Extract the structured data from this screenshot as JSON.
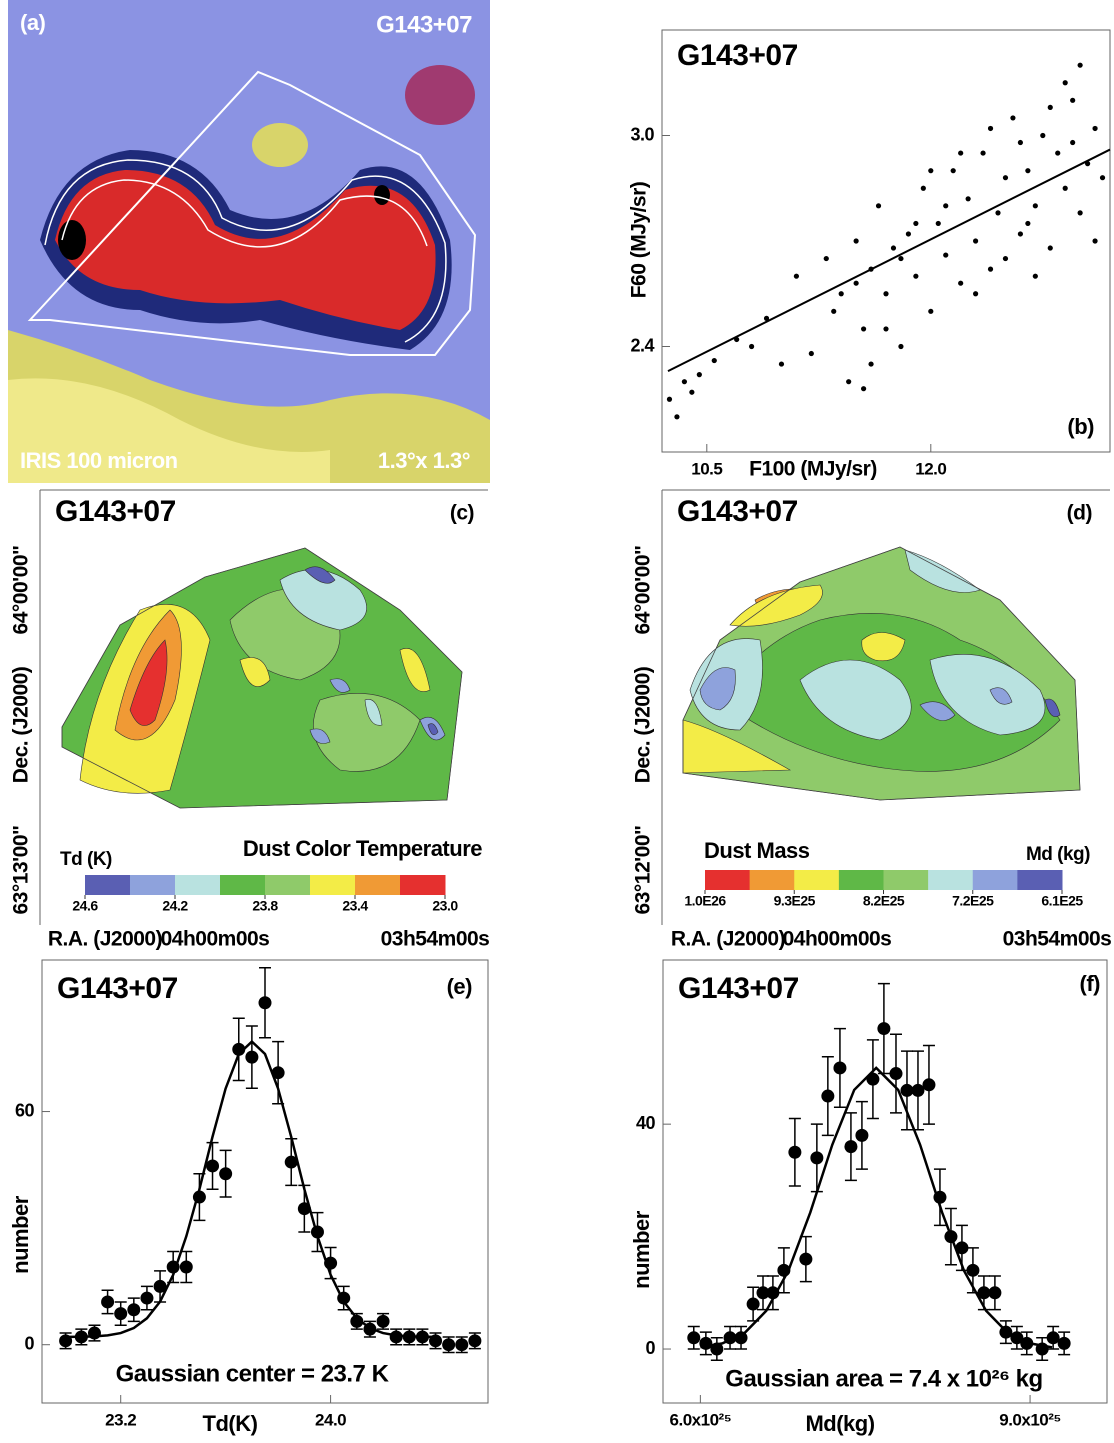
{
  "chart_data": [
    {
      "type": "image",
      "label": "(a)",
      "title": "G143+07",
      "caption": "IRIS 100 micron",
      "scale": "1.3°x 1.3°"
    },
    {
      "type": "scatter",
      "title": "G143+07",
      "label": "(b)",
      "x_label": "F100 (MJy/sr)",
      "y_label": "F60 (MJy/sr)",
      "xlim": [
        10.2,
        13.2
      ],
      "ylim": [
        2.1,
        3.3
      ],
      "xticks": [
        10.5,
        {
          "value": 12.0,
          "label": "12.0"
        }
      ],
      "yticks": [
        2.4,
        {
          "value": 3.0,
          "label": "3.0"
        }
      ],
      "color": "#000000",
      "x": [
        10.25,
        10.3,
        10.35,
        10.4,
        10.45,
        10.55,
        10.7,
        10.8,
        10.9,
        11.0,
        11.1,
        11.2,
        11.3,
        11.35,
        11.4,
        11.45,
        11.5,
        11.55,
        11.6,
        11.6,
        11.65,
        11.7,
        11.75,
        11.8,
        11.85,
        11.9,
        11.95,
        12.0,
        12.05,
        12.1,
        12.15,
        12.2,
        12.25,
        12.3,
        12.35,
        12.4,
        12.45,
        12.5,
        12.55,
        12.6,
        12.65,
        12.7,
        12.75,
        12.8,
        12.85,
        12.9,
        12.95,
        13.0,
        13.05,
        13.1,
        13.15,
        12.6,
        12.9,
        12.3,
        12.1,
        11.9,
        12.7,
        13.0,
        12.5,
        12.2,
        11.7,
        11.5,
        12.8,
        13.1,
        12.4,
        11.8,
        12.0,
        12.95,
        12.65,
        11.55
      ],
      "y": [
        2.25,
        2.2,
        2.3,
        2.27,
        2.32,
        2.36,
        2.42,
        2.4,
        2.48,
        2.35,
        2.6,
        2.38,
        2.65,
        2.5,
        2.55,
        2.3,
        2.7,
        2.45,
        2.62,
        2.35,
        2.8,
        2.55,
        2.68,
        2.4,
        2.72,
        2.6,
        2.85,
        2.5,
        2.75,
        2.66,
        2.9,
        2.58,
        2.82,
        2.7,
        2.95,
        2.62,
        2.78,
        2.88,
        3.05,
        2.72,
        2.9,
        2.8,
        3.0,
        2.68,
        2.95,
        2.85,
        3.1,
        2.78,
        2.92,
        3.02,
        2.88,
        2.98,
        3.15,
        2.55,
        2.8,
        2.75,
        2.6,
        3.2,
        2.65,
        2.95,
        2.45,
        2.58,
        3.08,
        2.7,
        3.02,
        2.65,
        2.9,
        2.98,
        2.75,
        2.28
      ],
      "fit": {
        "x": [
          10.24,
          13.2
        ],
        "y": [
          2.33,
          2.96
        ]
      }
    },
    {
      "type": "map",
      "title": "G143+07",
      "label": "(c)",
      "y_label": "Dec. (J2000)",
      "x_label": "R.A. (J2000)",
      "dec_ticks": [
        "64°00'00\"",
        "63°13'00\""
      ],
      "ra_ticks": [
        "04h00m00s",
        "03h54m00s"
      ],
      "colorbar_title": "Dust Color Temperature",
      "colorbar_unit": "Td (K)",
      "cticks": [
        24.6,
        24.2,
        23.8,
        23.4,
        {
          "value": 23.0,
          "label": "23.0"
        }
      ],
      "colors": [
        "#5a5fb3",
        "#8ea2dc",
        "#b9e2e0",
        "#5fb847",
        "#8fca6a",
        "#f3ec47",
        "#f09a35",
        "#e5302f"
      ]
    },
    {
      "type": "map",
      "title": "G143+07",
      "label": "(d)",
      "y_label": "Dec. (J2000)",
      "x_label": "R.A. (J2000)",
      "dec_ticks": [
        "64°00'00\"",
        "63°12'00\""
      ],
      "ra_ticks": [
        "04h00m00s",
        "03h54m00s"
      ],
      "colorbar_title": "Dust Mass",
      "colorbar_unit": "Md (kg)",
      "cticks": [
        {
          "value": 1e+26,
          "label": "1.0E26"
        },
        {
          "value": 9.3e+25,
          "label": "9.3E25"
        },
        {
          "value": 8.2e+25,
          "label": "8.2E25"
        },
        {
          "value": 7.2e+25,
          "label": "7.2E25"
        },
        {
          "value": 6.1e+25,
          "label": "6.1E25"
        }
      ],
      "colors": [
        "#e5302f",
        "#f09a35",
        "#f3ec47",
        "#5fb847",
        "#8fca6a",
        "#b9e2e0",
        "#8ea2dc",
        "#5a5fb3"
      ]
    },
    {
      "type": "errorbar",
      "title": "G143+07",
      "label": "(e)",
      "x_label": "Td(K)",
      "y_label": "number",
      "annotation": "Gaussian center = 23.7 K",
      "xlim": [
        22.9,
        24.6
      ],
      "ylim": [
        -15,
        99
      ],
      "xticks": [
        23.2,
        {
          "value": 24.0,
          "label": "24.0"
        }
      ],
      "yticks": [
        0,
        60
      ],
      "color": "#000000",
      "x": [
        22.99,
        23.05,
        23.1,
        23.15,
        23.2,
        23.25,
        23.3,
        23.35,
        23.4,
        23.45,
        23.5,
        23.55,
        23.6,
        23.65,
        23.7,
        23.75,
        23.8,
        23.85,
        23.9,
        23.95,
        24.0,
        24.05,
        24.1,
        24.15,
        24.2,
        24.25,
        24.3,
        24.35,
        24.4,
        24.45,
        24.5,
        24.55
      ],
      "values": [
        1,
        2,
        3,
        11,
        8,
        9,
        12,
        15,
        20,
        20,
        38,
        46,
        44,
        76,
        74,
        88,
        70,
        47,
        35,
        29,
        21,
        12,
        6,
        4,
        6,
        2,
        2,
        2,
        1,
        0,
        0,
        1
      ],
      "errors": [
        2,
        2,
        2,
        3,
        3,
        3,
        3,
        4,
        4,
        4,
        6,
        6,
        6,
        8,
        8,
        9,
        8,
        6,
        6,
        5,
        4,
        3,
        2,
        2,
        2,
        2,
        2,
        2,
        2,
        2,
        2,
        2
      ],
      "fit": {
        "x": [
          23.0,
          23.05,
          23.1,
          23.15,
          23.2,
          23.25,
          23.3,
          23.35,
          23.4,
          23.45,
          23.5,
          23.55,
          23.6,
          23.65,
          23.7,
          23.75,
          23.8,
          23.85,
          23.9,
          23.95,
          24.0,
          24.05,
          24.1,
          24.15,
          24.2,
          24.25,
          24.3,
          24.35,
          24.4
        ],
        "y": [
          2.0,
          2.05,
          2.15,
          2.4,
          3.0,
          4.3,
          6.8,
          11.1,
          18.0,
          27.9,
          40.0,
          53.5,
          65.9,
          74.8,
          78,
          74.8,
          65.9,
          53.5,
          40.0,
          27.9,
          18.0,
          11.1,
          6.8,
          4.3,
          3.0,
          2.4,
          2.15,
          2.05,
          2.0
        ]
      }
    },
    {
      "type": "errorbar",
      "title": "G143+07",
      "label": "(f)",
      "x_label": "Md(kg)",
      "y_label": "number",
      "annotation": "Gaussian area = 7.4 x 10²⁶ kg",
      "xlim": [
        5.66e+25,
        9.7e+25
      ],
      "ylim": [
        -9.6,
        69.2
      ],
      "xticks": [
        {
          "value": 6e+25,
          "label": "6.0x10²⁵"
        },
        {
          "value": 9e+25,
          "label": "9.0x10²⁵"
        }
      ],
      "yticks": [
        0,
        40
      ],
      "color": "#000000",
      "x": [
        5.94e+25,
        6.05e+25,
        6.15e+25,
        6.27e+25,
        6.37e+25,
        6.48e+25,
        6.57e+25,
        6.66e+25,
        6.76e+25,
        6.86e+25,
        6.96e+25,
        7.06e+25,
        7.16e+25,
        7.27e+25,
        7.37e+25,
        7.47e+25,
        7.57e+25,
        7.67e+25,
        7.78e+25,
        7.88e+25,
        7.98e+25,
        8.08e+25,
        8.18e+25,
        8.28e+25,
        8.38e+25,
        8.48e+25,
        8.58e+25,
        8.68e+25,
        8.78e+25,
        8.88e+25,
        8.97e+25,
        9.11e+25,
        9.21e+25,
        9.31e+25
      ],
      "values": [
        2,
        1,
        0,
        2,
        2,
        8,
        10,
        10,
        14,
        35,
        16,
        34,
        45,
        50,
        36,
        38,
        48,
        57,
        49,
        46,
        46,
        47,
        27,
        20,
        18,
        14,
        10,
        10,
        3,
        2,
        1,
        0,
        2,
        1
      ],
      "errors": [
        2,
        2,
        2,
        2,
        2,
        3,
        3,
        3,
        4,
        6,
        4,
        6,
        7,
        7,
        6,
        6,
        7,
        8,
        7,
        7,
        7,
        7,
        5,
        5,
        4,
        4,
        3,
        3,
        2,
        2,
        2,
        2,
        2,
        2
      ],
      "fit": {
        "x": [
          6e+25,
          6.2e+25,
          6.4e+25,
          6.6e+25,
          6.8e+25,
          7e+25,
          7.2e+25,
          7.4e+25,
          7.6e+25,
          7.8e+25,
          8e+25,
          8.2e+25,
          8.4e+25,
          8.6e+25,
          8.8e+25,
          9e+25,
          9.2e+25
        ],
        "y": [
          0.3,
          1.0,
          2.8,
          6.8,
          13.9,
          24.3,
          36.3,
          46.1,
          50,
          46.1,
          36.3,
          24.3,
          13.9,
          6.8,
          2.8,
          1.0,
          0.3
        ]
      }
    }
  ]
}
